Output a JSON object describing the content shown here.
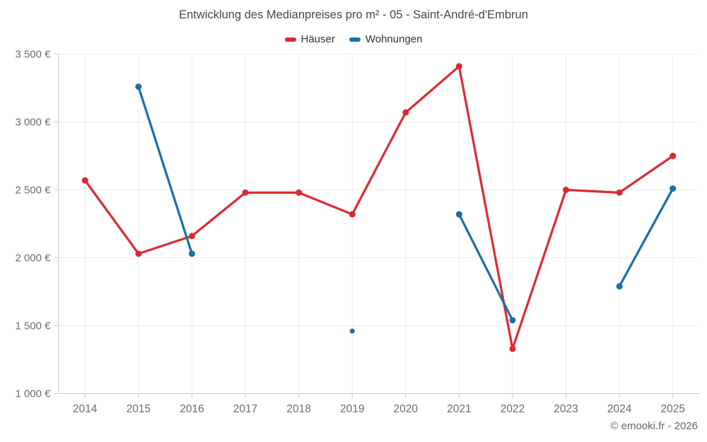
{
  "title": "Entwicklung des Medianpreises pro m² - 05 - Saint-André-d'Embrun",
  "copyright": "© emooki.fr - 2026",
  "colors": {
    "haeuser": "#dc2a32",
    "wohnungen": "#1a6fa4",
    "gridline": "#ededed",
    "axis_line": "#cccccc",
    "axis_text": "#6b6b71",
    "title_text": "#43474c"
  },
  "chart_data": {
    "type": "line",
    "x": [
      2014,
      2015,
      2016,
      2017,
      2018,
      2019,
      2020,
      2021,
      2022,
      2023,
      2024,
      2025
    ],
    "series": [
      {
        "name": "Häuser",
        "color": "#dc2a32",
        "values": [
          2570,
          2030,
          2160,
          2480,
          2480,
          2320,
          3070,
          3410,
          1330,
          2500,
          2480,
          2750
        ]
      },
      {
        "name": "Wohnungen",
        "color": "#1a6fa4",
        "values": [
          null,
          3260,
          2030,
          null,
          null,
          1460,
          null,
          2320,
          1540,
          null,
          1790,
          2510
        ]
      }
    ],
    "title": "Entwicklung des Medianpreises pro m² - 05 - Saint-André-d'Embrun",
    "xlabel": "",
    "ylabel": "",
    "ylim": [
      1000,
      3500
    ],
    "ytick_step": 500,
    "ytick_labels": [
      "1 000 €",
      "1 500 €",
      "2 000 €",
      "2 500 €",
      "3 000 €",
      "3 500 €"
    ],
    "grid": true,
    "legend_position": "top",
    "gaps_note": "null = no data point for that year"
  }
}
